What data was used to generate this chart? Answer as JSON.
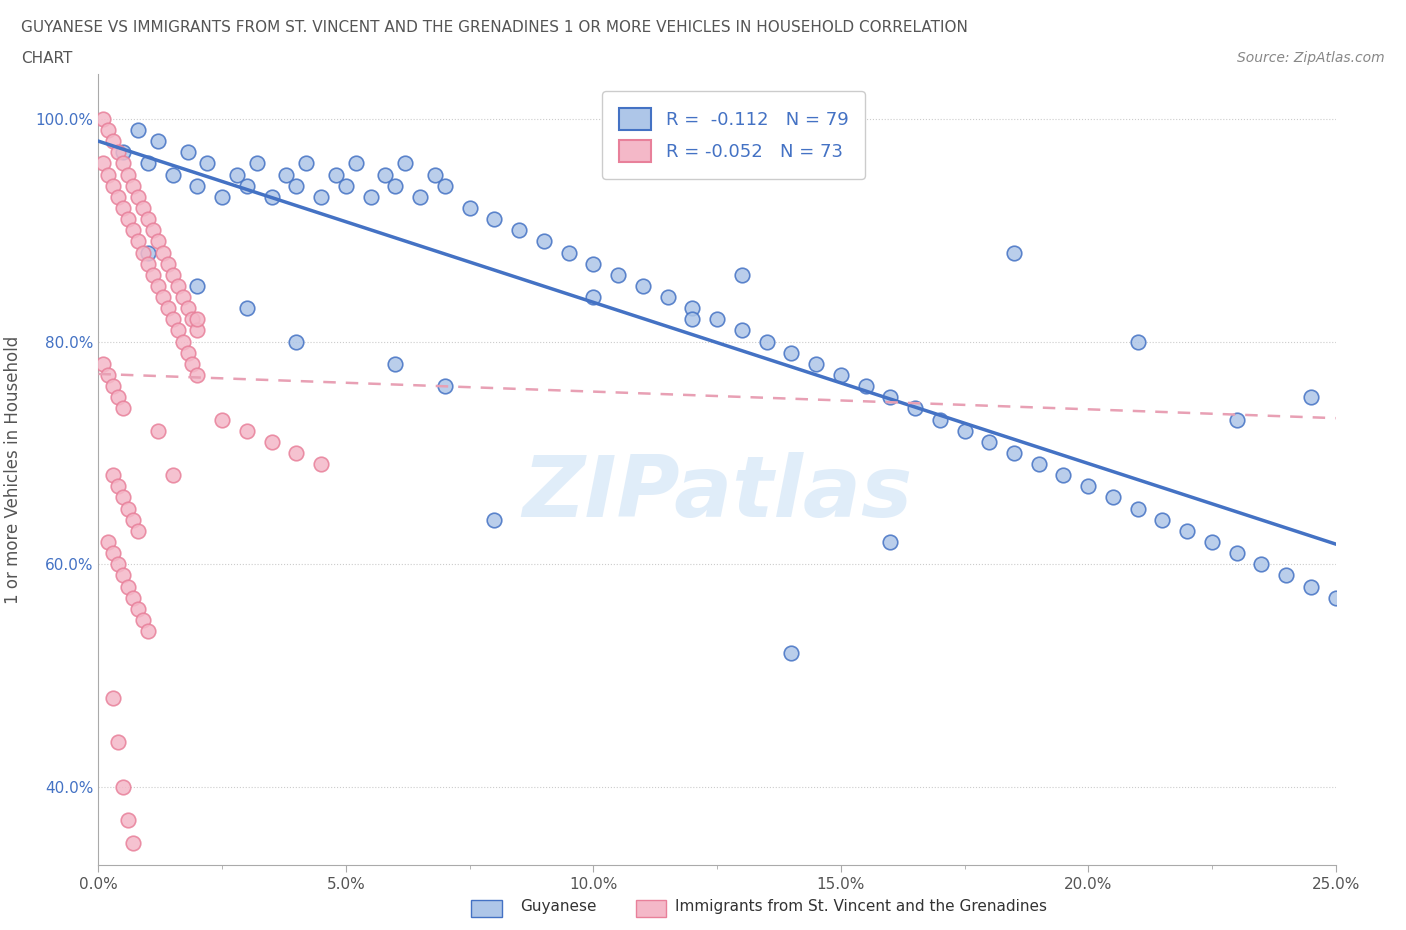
{
  "title_line1": "GUYANESE VS IMMIGRANTS FROM ST. VINCENT AND THE GRENADINES 1 OR MORE VEHICLES IN HOUSEHOLD CORRELATION",
  "title_line2": "CHART",
  "source": "Source: ZipAtlas.com",
  "ylabel": "1 or more Vehicles in Household",
  "xlim": [
    0.0,
    0.25
  ],
  "ylim": [
    0.33,
    1.04
  ],
  "xticklabels": [
    "0.0%",
    "",
    "",
    "",
    "5.0%",
    "",
    "",
    "",
    "",
    "10.0%",
    "",
    "",
    "",
    "",
    "15.0%",
    "",
    "",
    "",
    "",
    "20.0%",
    "",
    "",
    "",
    "",
    "25.0%"
  ],
  "xtick_values": [
    0.0,
    0.0125,
    0.025,
    0.0375,
    0.05,
    0.0625,
    0.075,
    0.0875,
    0.1,
    0.1125,
    0.125,
    0.1375,
    0.15,
    0.1625,
    0.175,
    0.1875,
    0.2,
    0.2125,
    0.225,
    0.2375,
    0.25
  ],
  "xtick_major": [
    0.0,
    0.05,
    0.1,
    0.15,
    0.2,
    0.25
  ],
  "xticklabels_major": [
    "0.0%",
    "5.0%",
    "10.0%",
    "15.0%",
    "20.0%",
    "25.0%"
  ],
  "ytick_values": [
    0.4,
    0.6,
    0.8,
    1.0
  ],
  "yticklabels": [
    "40.0%",
    "60.0%",
    "80.0%",
    "100.0%"
  ],
  "R_guyanese": -0.112,
  "N_guyanese": 79,
  "R_svg": -0.052,
  "N_svg": 73,
  "color_guyanese": "#aec6e8",
  "color_svg": "#f4b8c8",
  "color_guyanese_edge": "#4472c4",
  "color_svg_edge": "#e8809a",
  "color_guyanese_line": "#4472c4",
  "color_svg_line": "#e8a0b4",
  "watermark": "ZIPatlas",
  "legend_label_guyanese": "Guyanese",
  "legend_label_svg": "Immigrants from St. Vincent and the Grenadines",
  "guyanese_x": [
    0.005,
    0.008,
    0.01,
    0.012,
    0.015,
    0.018,
    0.02,
    0.022,
    0.025,
    0.028,
    0.03,
    0.032,
    0.035,
    0.038,
    0.04,
    0.042,
    0.045,
    0.048,
    0.05,
    0.052,
    0.055,
    0.058,
    0.06,
    0.062,
    0.065,
    0.068,
    0.07,
    0.075,
    0.08,
    0.085,
    0.09,
    0.095,
    0.1,
    0.105,
    0.11,
    0.115,
    0.12,
    0.125,
    0.13,
    0.135,
    0.14,
    0.145,
    0.15,
    0.155,
    0.16,
    0.165,
    0.17,
    0.175,
    0.18,
    0.185,
    0.19,
    0.195,
    0.2,
    0.205,
    0.21,
    0.215,
    0.22,
    0.225,
    0.23,
    0.235,
    0.24,
    0.245,
    0.25,
    0.01,
    0.02,
    0.03,
    0.04,
    0.06,
    0.07,
    0.08,
    0.1,
    0.12,
    0.13,
    0.14,
    0.16,
    0.185,
    0.21,
    0.23,
    0.245
  ],
  "guyanese_y": [
    0.97,
    0.99,
    0.96,
    0.98,
    0.95,
    0.97,
    0.94,
    0.96,
    0.93,
    0.95,
    0.94,
    0.96,
    0.93,
    0.95,
    0.94,
    0.96,
    0.93,
    0.95,
    0.94,
    0.96,
    0.93,
    0.95,
    0.94,
    0.96,
    0.93,
    0.95,
    0.94,
    0.92,
    0.91,
    0.9,
    0.89,
    0.88,
    0.87,
    0.86,
    0.85,
    0.84,
    0.83,
    0.82,
    0.81,
    0.8,
    0.79,
    0.78,
    0.77,
    0.76,
    0.75,
    0.74,
    0.73,
    0.72,
    0.71,
    0.7,
    0.69,
    0.68,
    0.67,
    0.66,
    0.65,
    0.64,
    0.63,
    0.62,
    0.61,
    0.6,
    0.59,
    0.58,
    0.57,
    0.88,
    0.85,
    0.83,
    0.8,
    0.78,
    0.76,
    0.64,
    0.84,
    0.82,
    0.86,
    0.52,
    0.62,
    0.88,
    0.8,
    0.73,
    0.75
  ],
  "svg_x": [
    0.001,
    0.002,
    0.003,
    0.004,
    0.005,
    0.006,
    0.007,
    0.008,
    0.009,
    0.01,
    0.011,
    0.012,
    0.013,
    0.014,
    0.015,
    0.016,
    0.017,
    0.018,
    0.019,
    0.02,
    0.001,
    0.002,
    0.003,
    0.004,
    0.005,
    0.006,
    0.007,
    0.008,
    0.009,
    0.01,
    0.011,
    0.012,
    0.013,
    0.014,
    0.015,
    0.016,
    0.017,
    0.018,
    0.019,
    0.02,
    0.001,
    0.002,
    0.003,
    0.004,
    0.005,
    0.025,
    0.03,
    0.035,
    0.04,
    0.045,
    0.003,
    0.004,
    0.005,
    0.006,
    0.007,
    0.008,
    0.002,
    0.003,
    0.004,
    0.005,
    0.006,
    0.007,
    0.008,
    0.009,
    0.01,
    0.003,
    0.004,
    0.005,
    0.006,
    0.007,
    0.012,
    0.015,
    0.02
  ],
  "svg_y": [
    1.0,
    0.99,
    0.98,
    0.97,
    0.96,
    0.95,
    0.94,
    0.93,
    0.92,
    0.91,
    0.9,
    0.89,
    0.88,
    0.87,
    0.86,
    0.85,
    0.84,
    0.83,
    0.82,
    0.81,
    0.96,
    0.95,
    0.94,
    0.93,
    0.92,
    0.91,
    0.9,
    0.89,
    0.88,
    0.87,
    0.86,
    0.85,
    0.84,
    0.83,
    0.82,
    0.81,
    0.8,
    0.79,
    0.78,
    0.77,
    0.78,
    0.77,
    0.76,
    0.75,
    0.74,
    0.73,
    0.72,
    0.71,
    0.7,
    0.69,
    0.68,
    0.67,
    0.66,
    0.65,
    0.64,
    0.63,
    0.62,
    0.61,
    0.6,
    0.59,
    0.58,
    0.57,
    0.56,
    0.55,
    0.54,
    0.48,
    0.44,
    0.4,
    0.37,
    0.35,
    0.72,
    0.68,
    0.82
  ]
}
